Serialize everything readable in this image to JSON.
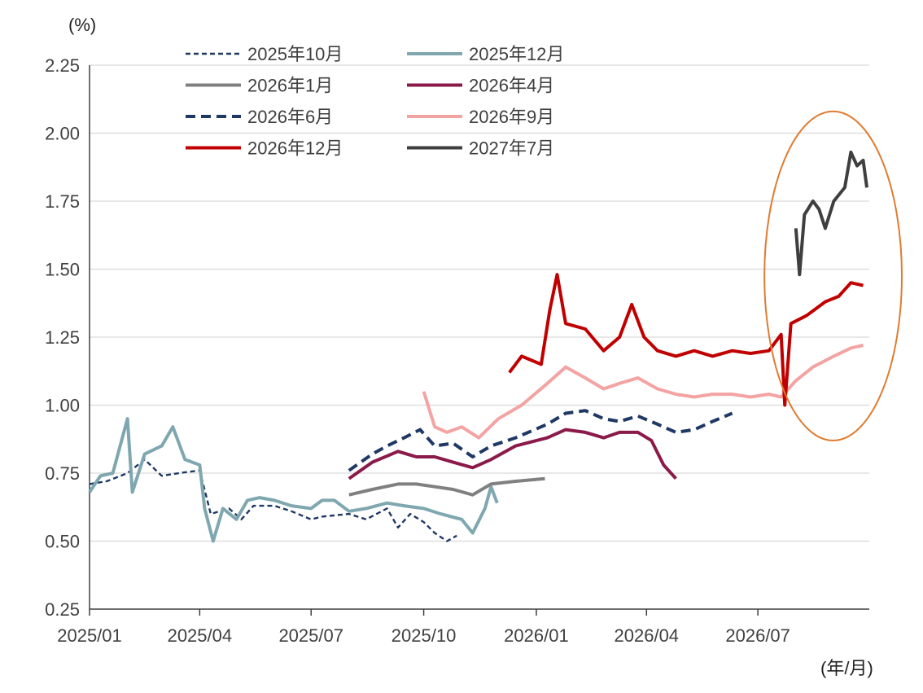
{
  "chart_data": {
    "type": "line",
    "y_unit": "(%)",
    "x_unit": "(年/月)",
    "ylim": [
      0.25,
      2.25
    ],
    "yticks": [
      "2.25",
      "2.00",
      "1.75",
      "1.50",
      "1.25",
      "1.00",
      "0.75",
      "0.50",
      "0.25"
    ],
    "xticks": [
      "2025/01",
      "2025/04",
      "2025/07",
      "2025/10",
      "2026/01",
      "2026/04",
      "2026/07"
    ],
    "xlim": [
      "2025-01-01",
      "2026-09-30"
    ],
    "grid": "horizontal",
    "legend_position": "top-left",
    "highlight": {
      "shape": "ellipse",
      "color": "#E07B30",
      "x_range": [
        "2026-07-01",
        "2026-09-30"
      ],
      "y_range": [
        0.87,
        2.08
      ]
    },
    "series": [
      {
        "name": "2025年10月",
        "color": "#1F3864",
        "style": "dotted",
        "points": [
          [
            "2025-01-01",
            0.71
          ],
          [
            "2025-01-15",
            0.72
          ],
          [
            "2025-02-01",
            0.75
          ],
          [
            "2025-02-15",
            0.8
          ],
          [
            "2025-03-01",
            0.74
          ],
          [
            "2025-03-15",
            0.75
          ],
          [
            "2025-04-01",
            0.76
          ],
          [
            "2025-04-10",
            0.6
          ],
          [
            "2025-04-25",
            0.62
          ],
          [
            "2025-05-05",
            0.58
          ],
          [
            "2025-05-15",
            0.63
          ],
          [
            "2025-06-01",
            0.63
          ],
          [
            "2025-06-15",
            0.61
          ],
          [
            "2025-07-01",
            0.58
          ],
          [
            "2025-07-10",
            0.59
          ],
          [
            "2025-08-01",
            0.6
          ],
          [
            "2025-08-15",
            0.58
          ],
          [
            "2025-09-01",
            0.62
          ],
          [
            "2025-09-10",
            0.55
          ],
          [
            "2025-09-20",
            0.6
          ],
          [
            "2025-10-01",
            0.57
          ],
          [
            "2025-10-10",
            0.53
          ],
          [
            "2025-10-20",
            0.5
          ],
          [
            "2025-10-28",
            0.52
          ]
        ]
      },
      {
        "name": "2025年12月",
        "color": "#7FA7AF",
        "style": "solid",
        "points": [
          [
            "2025-01-01",
            0.68
          ],
          [
            "2025-01-10",
            0.74
          ],
          [
            "2025-01-20",
            0.75
          ],
          [
            "2025-02-01",
            0.95
          ],
          [
            "2025-02-05",
            0.68
          ],
          [
            "2025-02-15",
            0.82
          ],
          [
            "2025-03-01",
            0.85
          ],
          [
            "2025-03-10",
            0.92
          ],
          [
            "2025-03-20",
            0.8
          ],
          [
            "2025-04-01",
            0.78
          ],
          [
            "2025-04-05",
            0.62
          ],
          [
            "2025-04-12",
            0.5
          ],
          [
            "2025-04-20",
            0.62
          ],
          [
            "2025-05-01",
            0.58
          ],
          [
            "2025-05-10",
            0.65
          ],
          [
            "2025-05-20",
            0.66
          ],
          [
            "2025-06-01",
            0.65
          ],
          [
            "2025-06-15",
            0.63
          ],
          [
            "2025-07-01",
            0.62
          ],
          [
            "2025-07-10",
            0.65
          ],
          [
            "2025-07-20",
            0.65
          ],
          [
            "2025-08-01",
            0.61
          ],
          [
            "2025-08-15",
            0.62
          ],
          [
            "2025-09-01",
            0.64
          ],
          [
            "2025-09-15",
            0.63
          ],
          [
            "2025-10-01",
            0.62
          ],
          [
            "2025-10-15",
            0.6
          ],
          [
            "2025-11-01",
            0.58
          ],
          [
            "2025-11-10",
            0.53
          ],
          [
            "2025-11-20",
            0.62
          ],
          [
            "2025-11-25",
            0.7
          ],
          [
            "2025-11-30",
            0.64
          ]
        ]
      },
      {
        "name": "2026年1月",
        "color": "#808080",
        "style": "solid",
        "points": [
          [
            "2025-08-01",
            0.67
          ],
          [
            "2025-08-20",
            0.69
          ],
          [
            "2025-09-10",
            0.71
          ],
          [
            "2025-09-25",
            0.71
          ],
          [
            "2025-10-10",
            0.7
          ],
          [
            "2025-10-25",
            0.69
          ],
          [
            "2025-11-10",
            0.67
          ],
          [
            "2025-11-25",
            0.71
          ],
          [
            "2025-12-15",
            0.72
          ],
          [
            "2026-01-08",
            0.73
          ]
        ]
      },
      {
        "name": "2026年4月",
        "color": "#8B1A4A",
        "style": "solid",
        "points": [
          [
            "2025-08-01",
            0.73
          ],
          [
            "2025-08-20",
            0.79
          ],
          [
            "2025-09-10",
            0.83
          ],
          [
            "2025-09-25",
            0.81
          ],
          [
            "2025-10-10",
            0.81
          ],
          [
            "2025-10-25",
            0.79
          ],
          [
            "2025-11-10",
            0.77
          ],
          [
            "2025-11-25",
            0.8
          ],
          [
            "2025-12-15",
            0.85
          ],
          [
            "2026-01-10",
            0.88
          ],
          [
            "2026-01-25",
            0.91
          ],
          [
            "2026-02-10",
            0.9
          ],
          [
            "2026-02-25",
            0.88
          ],
          [
            "2026-03-10",
            0.9
          ],
          [
            "2026-03-25",
            0.9
          ],
          [
            "2026-04-05",
            0.87
          ],
          [
            "2026-04-15",
            0.78
          ],
          [
            "2026-04-25",
            0.73
          ]
        ]
      },
      {
        "name": "2026年6月",
        "color": "#1F3864",
        "style": "dashed",
        "points": [
          [
            "2025-08-01",
            0.76
          ],
          [
            "2025-08-20",
            0.82
          ],
          [
            "2025-09-01",
            0.85
          ],
          [
            "2025-09-15",
            0.88
          ],
          [
            "2025-09-28",
            0.91
          ],
          [
            "2025-10-10",
            0.85
          ],
          [
            "2025-10-25",
            0.86
          ],
          [
            "2025-11-10",
            0.81
          ],
          [
            "2025-11-25",
            0.85
          ],
          [
            "2025-12-15",
            0.88
          ],
          [
            "2026-01-10",
            0.93
          ],
          [
            "2026-01-25",
            0.97
          ],
          [
            "2026-02-10",
            0.98
          ],
          [
            "2026-02-25",
            0.95
          ],
          [
            "2026-03-10",
            0.94
          ],
          [
            "2026-03-25",
            0.96
          ],
          [
            "2026-04-10",
            0.93
          ],
          [
            "2026-04-25",
            0.9
          ],
          [
            "2026-05-10",
            0.91
          ],
          [
            "2026-05-25",
            0.94
          ],
          [
            "2026-06-10",
            0.97
          ]
        ]
      },
      {
        "name": "2026年9月",
        "color": "#F4A3A3",
        "style": "solid",
        "points": [
          [
            "2025-10-01",
            1.05
          ],
          [
            "2025-10-10",
            0.92
          ],
          [
            "2025-10-20",
            0.9
          ],
          [
            "2025-11-01",
            0.92
          ],
          [
            "2025-11-15",
            0.88
          ],
          [
            "2025-12-01",
            0.95
          ],
          [
            "2025-12-20",
            1.0
          ],
          [
            "2026-01-10",
            1.08
          ],
          [
            "2026-01-25",
            1.14
          ],
          [
            "2026-02-10",
            1.1
          ],
          [
            "2026-02-25",
            1.06
          ],
          [
            "2026-03-10",
            1.08
          ],
          [
            "2026-03-25",
            1.1
          ],
          [
            "2026-04-10",
            1.06
          ],
          [
            "2026-04-25",
            1.04
          ],
          [
            "2026-05-10",
            1.03
          ],
          [
            "2026-05-25",
            1.04
          ],
          [
            "2026-06-10",
            1.04
          ],
          [
            "2026-06-25",
            1.03
          ],
          [
            "2026-07-10",
            1.04
          ],
          [
            "2026-07-20",
            1.03
          ],
          [
            "2026-08-01",
            1.09
          ],
          [
            "2026-08-15",
            1.14
          ],
          [
            "2026-09-01",
            1.18
          ],
          [
            "2026-09-15",
            1.21
          ],
          [
            "2026-09-25",
            1.22
          ]
        ]
      },
      {
        "name": "2026年12月",
        "color": "#C00000",
        "style": "solid",
        "points": [
          [
            "2025-12-10",
            1.12
          ],
          [
            "2025-12-20",
            1.18
          ],
          [
            "2026-01-05",
            1.15
          ],
          [
            "2026-01-12",
            1.35
          ],
          [
            "2026-01-18",
            1.48
          ],
          [
            "2026-01-25",
            1.3
          ],
          [
            "2026-02-10",
            1.28
          ],
          [
            "2026-02-25",
            1.2
          ],
          [
            "2026-03-10",
            1.25
          ],
          [
            "2026-03-20",
            1.37
          ],
          [
            "2026-03-30",
            1.25
          ],
          [
            "2026-04-10",
            1.2
          ],
          [
            "2026-04-25",
            1.18
          ],
          [
            "2026-05-10",
            1.2
          ],
          [
            "2026-05-25",
            1.18
          ],
          [
            "2026-06-10",
            1.2
          ],
          [
            "2026-06-25",
            1.19
          ],
          [
            "2026-07-10",
            1.2
          ],
          [
            "2026-07-20",
            1.26
          ],
          [
            "2026-07-23",
            1.0
          ],
          [
            "2026-07-28",
            1.3
          ],
          [
            "2026-08-10",
            1.33
          ],
          [
            "2026-08-25",
            1.38
          ],
          [
            "2026-09-05",
            1.4
          ],
          [
            "2026-09-15",
            1.45
          ],
          [
            "2026-09-25",
            1.44
          ]
        ]
      },
      {
        "name": "2027年7月",
        "color": "#3F3F3F",
        "style": "solid",
        "points": [
          [
            "2026-08-01",
            1.65
          ],
          [
            "2026-08-04",
            1.48
          ],
          [
            "2026-08-08",
            1.7
          ],
          [
            "2026-08-15",
            1.75
          ],
          [
            "2026-08-20",
            1.72
          ],
          [
            "2026-08-25",
            1.65
          ],
          [
            "2026-09-01",
            1.75
          ],
          [
            "2026-09-10",
            1.8
          ],
          [
            "2026-09-15",
            1.93
          ],
          [
            "2026-09-20",
            1.88
          ],
          [
            "2026-09-25",
            1.9
          ],
          [
            "2026-09-28",
            1.8
          ]
        ]
      }
    ]
  }
}
